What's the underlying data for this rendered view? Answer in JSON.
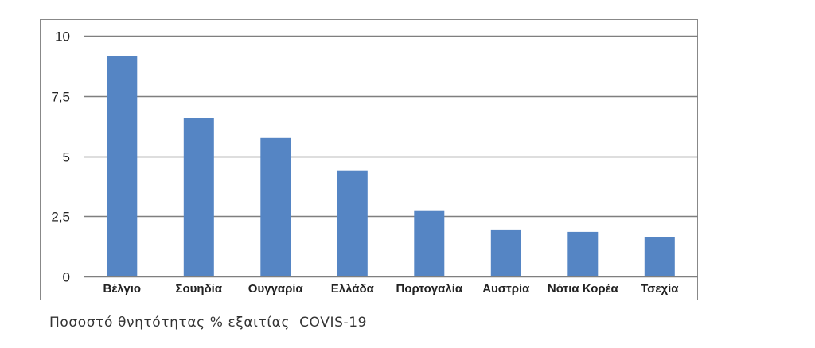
{
  "caption": "Ποσοστό θνητότητας % εξαιτίας  COVIS-19",
  "chart_data": {
    "type": "bar",
    "categories": [
      "Βέλγιο",
      "Σουηδία",
      "Ουγγαρία",
      "Ελλάδα",
      "Πορτογαλία",
      "Αυστρία",
      "Νότια Κορέα",
      "Τσεχία"
    ],
    "values": [
      9.15,
      6.6,
      5.75,
      4.4,
      2.75,
      1.95,
      1.85,
      1.65
    ],
    "title": "",
    "xlabel": "",
    "ylabel": "",
    "ylim": [
      0,
      10
    ],
    "yticks": [
      0,
      2.5,
      5,
      7.5,
      10
    ],
    "ytick_labels": [
      "0",
      "2,5",
      "5",
      "7,5",
      "10"
    ],
    "grid": true,
    "legend": "none",
    "colors": {
      "bar": "#5585c4",
      "grid": "#7f7f7f",
      "border": "#888888"
    }
  }
}
